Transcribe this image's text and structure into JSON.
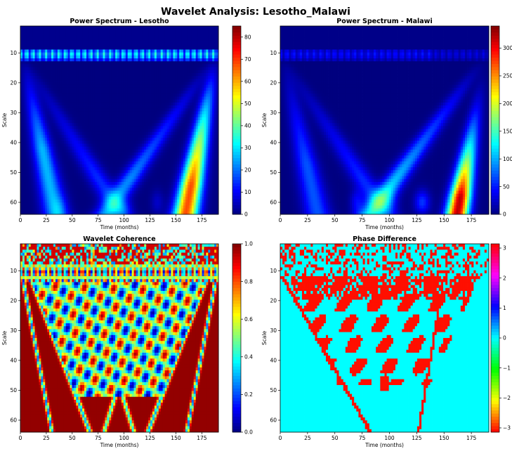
{
  "figure": {
    "title": "Wavelet Analysis: Lesotho_Malawi"
  },
  "chart_data": [
    {
      "type": "heatmap",
      "id": "power_lesotho",
      "title": "Power Spectrum - Lesotho",
      "xlabel": "Time (months)",
      "ylabel": "Scale",
      "xlim": [
        0,
        191
      ],
      "ylim": [
        64,
        1
      ],
      "xticks": [
        0,
        25,
        50,
        75,
        100,
        125,
        150,
        175
      ],
      "yticks": [
        10,
        20,
        30,
        40,
        50,
        60
      ],
      "colormap": "jet",
      "colorbar": {
        "min": 0,
        "max": 85,
        "ticks": [
          0,
          10,
          20,
          30,
          40,
          50,
          60,
          70,
          80
        ]
      }
    },
    {
      "type": "heatmap",
      "id": "power_malawi",
      "title": "Power Spectrum - Malawi",
      "xlabel": "Time (months)",
      "ylabel": "Scale",
      "xlim": [
        0,
        191
      ],
      "ylim": [
        64,
        1
      ],
      "xticks": [
        0,
        25,
        50,
        75,
        100,
        125,
        150,
        175
      ],
      "yticks": [
        10,
        20,
        30,
        40,
        50,
        60
      ],
      "colormap": "jet",
      "colorbar": {
        "min": 0,
        "max": 340,
        "ticks": [
          0,
          50,
          100,
          150,
          200,
          250,
          300
        ],
        "tick_labels": [
          "0",
          "50",
          "100",
          "150",
          "200",
          "250",
          "300"
        ]
      }
    },
    {
      "type": "heatmap",
      "id": "coherence",
      "title": "Wavelet Coherence",
      "xlabel": "Time (months)",
      "ylabel": "Scale",
      "xlim": [
        0,
        191
      ],
      "ylim": [
        64,
        1
      ],
      "xticks": [
        0,
        25,
        50,
        75,
        100,
        125,
        150,
        175
      ],
      "yticks": [
        10,
        20,
        30,
        40,
        50,
        60
      ],
      "colormap": "jet",
      "colorbar": {
        "min": 0,
        "max": 1,
        "ticks": [
          0,
          0.2,
          0.4,
          0.6,
          0.8,
          1.0
        ],
        "tick_labels": [
          "0.0",
          "0.2",
          "0.4",
          "0.6",
          "0.8",
          "1.0"
        ]
      }
    },
    {
      "type": "heatmap",
      "id": "phase",
      "title": "Phase Difference",
      "xlabel": "Time (months)",
      "ylabel": "Scale",
      "xlim": [
        0,
        191
      ],
      "ylim": [
        64,
        1
      ],
      "xticks": [
        0,
        25,
        50,
        75,
        100,
        125,
        150,
        175
      ],
      "yticks": [
        10,
        20,
        30,
        40,
        50,
        60
      ],
      "colormap": "hsv",
      "colorbar": {
        "min": -3.14159,
        "max": 3.14159,
        "ticks": [
          -3,
          -2,
          -1,
          0,
          1,
          2,
          3
        ],
        "tick_labels": [
          "−3",
          "−2",
          "−1",
          "0",
          "1",
          "2",
          "3"
        ]
      }
    }
  ]
}
